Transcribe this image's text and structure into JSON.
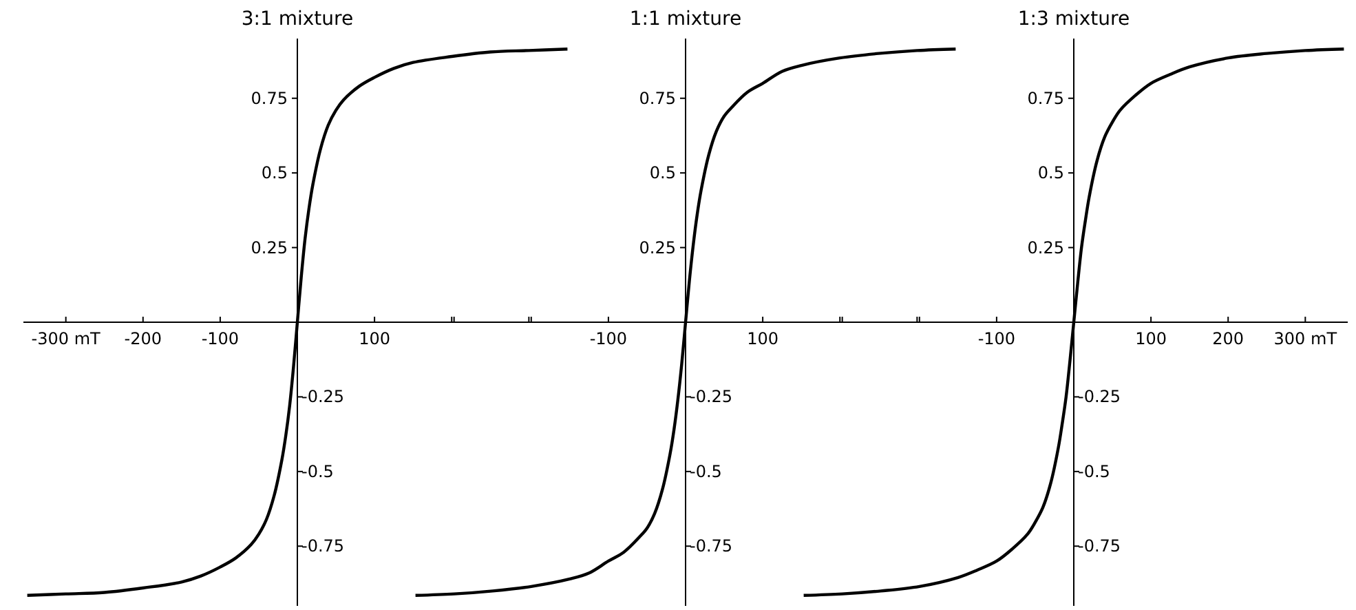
{
  "chart_data": [
    {
      "type": "line",
      "title": "3:1 mixture",
      "x": [
        -350,
        -300,
        -250,
        -200,
        -150,
        -125,
        -100,
        -80,
        -60,
        -50,
        -40,
        -30,
        -20,
        -15,
        -10,
        -5,
        0,
        5,
        10,
        15,
        20,
        30,
        40,
        50,
        60,
        80,
        100,
        125,
        150,
        200,
        250,
        300,
        350
      ],
      "series": [
        {
          "color": "#000000",
          "values": [
            -0.915,
            -0.91,
            -0.905,
            -0.89,
            -0.87,
            -0.85,
            -0.82,
            -0.79,
            -0.745,
            -0.71,
            -0.66,
            -0.58,
            -0.46,
            -0.38,
            -0.28,
            -0.15,
            0,
            0.15,
            0.28,
            0.38,
            0.46,
            0.58,
            0.66,
            0.71,
            0.745,
            0.79,
            0.82,
            0.85,
            0.87,
            0.89,
            0.905,
            0.91,
            0.915
          ]
        }
      ],
      "xlim": [
        -355,
        355
      ],
      "ylim": [
        -0.95,
        0.95
      ],
      "xticks": [
        {
          "value": -300,
          "label": "-300 mT"
        },
        -200,
        -100,
        100,
        {
          "value": 200,
          "label": null
        },
        {
          "value": 300,
          "label": null
        }
      ],
      "yticks": [
        0.25,
        0.5,
        0.75
      ],
      "y2lim": [
        -0.95,
        0.95
      ],
      "y2ticks": [
        -0.75,
        -0.5,
        -0.25
      ],
      "grid": false,
      "marker": "none",
      "line_style": "solid"
    },
    {
      "type": "line",
      "title": "1:1 mixture",
      "x": [
        -350,
        -300,
        -250,
        -200,
        -150,
        -125,
        -100,
        -80,
        -60,
        -50,
        -40,
        -30,
        -20,
        -15,
        -10,
        -5,
        0,
        5,
        10,
        15,
        20,
        30,
        40,
        50,
        60,
        80,
        100,
        125,
        150,
        200,
        250,
        300,
        350
      ],
      "series": [
        {
          "color": "#000000",
          "values": [
            -0.915,
            -0.91,
            -0.9,
            -0.885,
            -0.86,
            -0.84,
            -0.8,
            -0.77,
            -0.72,
            -0.69,
            -0.64,
            -0.56,
            -0.44,
            -0.36,
            -0.26,
            -0.14,
            0,
            0.14,
            0.26,
            0.36,
            0.44,
            0.56,
            0.64,
            0.69,
            0.72,
            0.77,
            0.8,
            0.84,
            0.86,
            0.885,
            0.9,
            0.91,
            0.915
          ]
        }
      ],
      "xlim": [
        -355,
        355
      ],
      "ylim": [
        -0.95,
        0.95
      ],
      "xticks": [
        {
          "value": -300,
          "label": null
        },
        {
          "value": -200,
          "label": null
        },
        -100,
        100,
        {
          "value": 200,
          "label": null
        },
        {
          "value": 300,
          "label": null
        }
      ],
      "yticks": [
        0.25,
        0.5,
        0.75
      ],
      "y2lim": [
        -0.95,
        0.95
      ],
      "y2ticks": [
        -0.75,
        -0.5,
        -0.25
      ],
      "grid": false,
      "marker": "none",
      "line_style": "solid"
    },
    {
      "type": "line",
      "title": "1:3 mixture",
      "x": [
        -350,
        -300,
        -250,
        -200,
        -150,
        -125,
        -100,
        -80,
        -60,
        -50,
        -40,
        -30,
        -20,
        -15,
        -10,
        -5,
        0,
        5,
        10,
        15,
        20,
        30,
        40,
        50,
        60,
        80,
        100,
        125,
        150,
        200,
        250,
        300,
        350
      ],
      "series": [
        {
          "color": "#000000",
          "values": [
            -0.915,
            -0.91,
            -0.9,
            -0.885,
            -0.855,
            -0.83,
            -0.8,
            -0.76,
            -0.71,
            -0.67,
            -0.62,
            -0.54,
            -0.42,
            -0.34,
            -0.25,
            -0.13,
            0,
            0.13,
            0.25,
            0.34,
            0.42,
            0.54,
            0.62,
            0.67,
            0.71,
            0.76,
            0.8,
            0.83,
            0.855,
            0.885,
            0.9,
            0.91,
            0.915
          ]
        }
      ],
      "xlim": [
        -355,
        355
      ],
      "ylim": [
        -0.95,
        0.95
      ],
      "xticks": [
        {
          "value": -300,
          "label": null
        },
        {
          "value": -200,
          "label": null
        },
        -100,
        100,
        200,
        {
          "value": 300,
          "label": "300 mT"
        }
      ],
      "yticks": [
        0.25,
        0.5,
        0.75
      ],
      "y2lim": [
        -0.95,
        0.95
      ],
      "y2ticks": [
        -0.75,
        -0.5,
        -0.25
      ],
      "grid": false,
      "marker": "none",
      "line_style": "solid"
    }
  ]
}
